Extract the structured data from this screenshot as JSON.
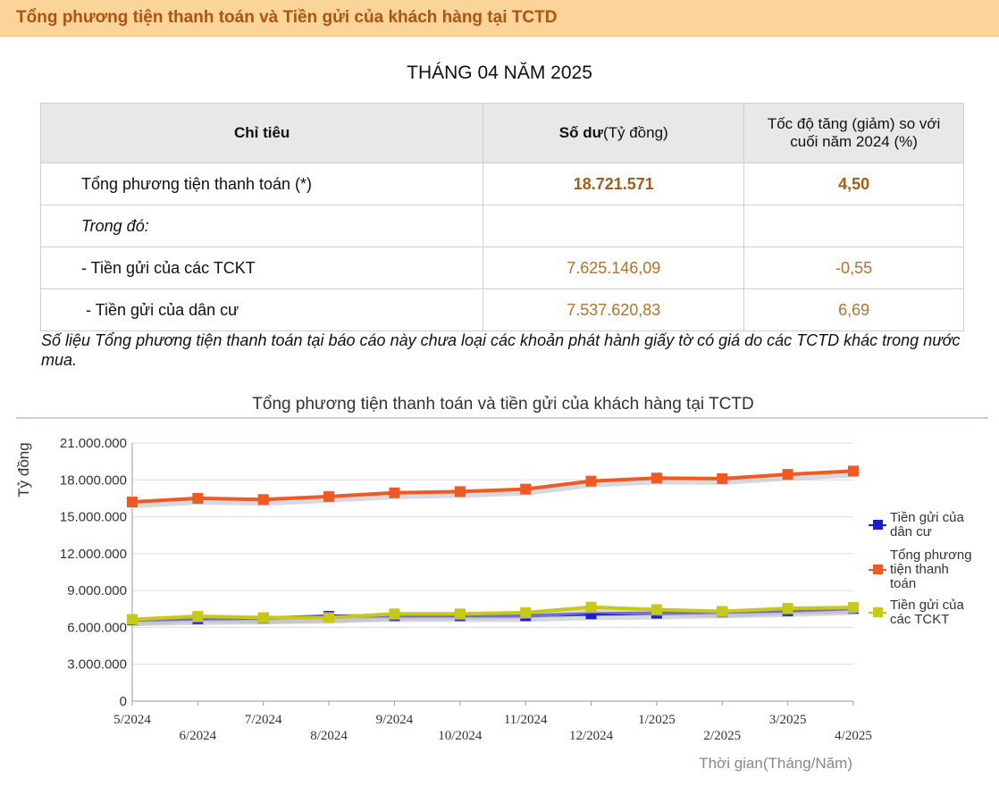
{
  "header": {
    "title": "Tổng phương tiện thanh toán và Tiền gửi của khách hàng tại TCTD"
  },
  "period": "THÁNG 04 NĂM 2025",
  "table": {
    "headers": {
      "indicator": "Chỉ tiêu",
      "balance_bold": "Số dư",
      "balance_unit": "(Tỷ đồng)",
      "growth_line1": "Tốc độ tăng (giảm) so với",
      "growth_line2": "cuối năm 2024 (%)"
    },
    "rows": [
      {
        "label": "Tổng phương tiện thanh toán (*)",
        "balance": "18.721.571",
        "growth": "4,50"
      },
      {
        "label": "Trong đó:",
        "balance": "",
        "growth": ""
      },
      {
        "label": "- Tiền gửi của các TCKT",
        "balance": "7.625.146,09",
        "growth": "-0,55"
      },
      {
        "label": " - Tiền gửi của dân cư",
        "balance": "7.537.620,83",
        "growth": "6,69"
      }
    ]
  },
  "note": "Số liệu Tổng phương tiện thanh toán tại báo cáo này chưa loại các khoản phát hành giấy tờ có giá do các TCTD khác trong nước mua.",
  "chart_data": {
    "type": "line",
    "title": "Tổng phương tiện thanh toán và tiền gửi của khách hàng tại TCTD",
    "xlabel": "Thời gian(Tháng/Năm)",
    "ylabel": "Tỷ đồng",
    "ylim": [
      0,
      21000000
    ],
    "yticks": [
      0,
      3000000,
      6000000,
      9000000,
      12000000,
      15000000,
      18000000,
      21000000
    ],
    "ytick_labels": [
      "0",
      "3.000.000",
      "6.000.000",
      "9.000.000",
      "12.000.000",
      "15.000.000",
      "18.000.000",
      "21.000.000"
    ],
    "categories": [
      "5/2024",
      "6/2024",
      "7/2024",
      "8/2024",
      "9/2024",
      "10/2024",
      "11/2024",
      "12/2024",
      "1/2025",
      "2/2025",
      "3/2025",
      "4/2025"
    ],
    "grid": true,
    "legend_position": "right",
    "series": [
      {
        "name": "Tiền gửi của dân cư",
        "color": "#1c1cd6",
        "values": [
          6600000,
          6700000,
          6750000,
          6900000,
          6950000,
          6950000,
          6950000,
          7100000,
          7150000,
          7250000,
          7350000,
          7537621
        ]
      },
      {
        "name": "Tổng phương tiện thanh toán",
        "color": "#f05a22",
        "values": [
          16200000,
          16500000,
          16400000,
          16650000,
          16950000,
          17050000,
          17250000,
          17900000,
          18150000,
          18100000,
          18450000,
          18721571
        ]
      },
      {
        "name": "Tiền gửi của các TCKT",
        "color": "#c8c817",
        "values": [
          6650000,
          6900000,
          6800000,
          6800000,
          7100000,
          7100000,
          7200000,
          7650000,
          7450000,
          7300000,
          7550000,
          7625146
        ]
      }
    ]
  }
}
